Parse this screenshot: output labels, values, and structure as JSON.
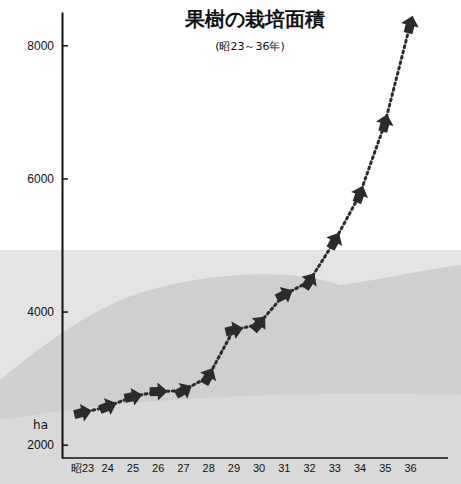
{
  "chart_data": {
    "type": "line",
    "title": "果樹の栽培面積",
    "subtitle": "(昭23～36年)",
    "y_label": "ha",
    "categories": [
      "昭23",
      "24",
      "25",
      "26",
      "27",
      "28",
      "29",
      "30",
      "31",
      "32",
      "33",
      "34",
      "35",
      "36"
    ],
    "values": [
      2480,
      2570,
      2720,
      2800,
      2810,
      3020,
      3720,
      3810,
      4250,
      4450,
      5050,
      5750,
      6820,
      8300
    ],
    "color": "#2b2b2b",
    "marker": "arrow",
    "line_style": "dotted",
    "ylim": [
      1800,
      8500
    ],
    "yticks": [
      2000,
      4000,
      6000,
      8000
    ]
  }
}
